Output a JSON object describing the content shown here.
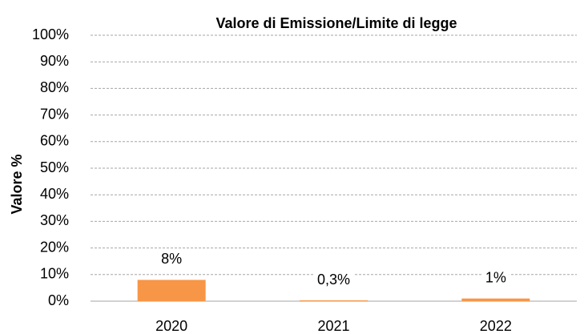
{
  "chart_data": {
    "type": "bar",
    "title": "Valore di Emissione/Limite di legge",
    "y_label": "Valore %",
    "categories": [
      "2020",
      "2021",
      "2022"
    ],
    "values": [
      8,
      0.3,
      1
    ],
    "value_labels": [
      "8%",
      "0,3%",
      "1%"
    ],
    "color": "#f79646",
    "ylim": [
      0,
      100
    ],
    "yticks": [
      {
        "value": 0,
        "label": "0%"
      },
      {
        "value": 10,
        "label": "10%"
      },
      {
        "value": 20,
        "label": "20%"
      },
      {
        "value": 30,
        "label": "30%"
      },
      {
        "value": 40,
        "label": "40%"
      },
      {
        "value": 50,
        "label": "50%"
      },
      {
        "value": 60,
        "label": "60%"
      },
      {
        "value": 70,
        "label": "70%"
      },
      {
        "value": 80,
        "label": "80%"
      },
      {
        "value": 90,
        "label": "90%"
      },
      {
        "value": 100,
        "label": "100%"
      }
    ],
    "grid": true
  }
}
